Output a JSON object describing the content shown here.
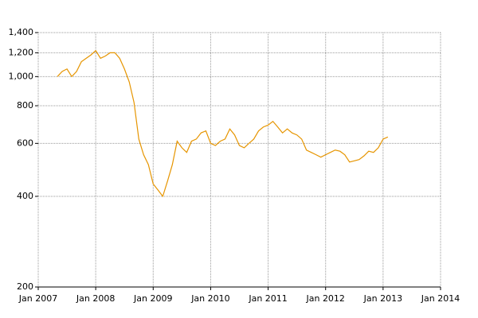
{
  "chart_data": {
    "type": "line",
    "log_scale": true,
    "grid": true,
    "x": [
      "2007-05",
      "2007-06",
      "2007-07",
      "2007-08",
      "2007-09",
      "2007-10",
      "2007-11",
      "2007-12",
      "2008-01",
      "2008-02",
      "2008-03",
      "2008-04",
      "2008-05",
      "2008-06",
      "2008-07",
      "2008-08",
      "2008-09",
      "2008-10",
      "2008-11",
      "2008-12",
      "2009-01",
      "2009-02",
      "2009-03",
      "2009-04",
      "2009-05",
      "2009-06",
      "2009-07",
      "2009-08",
      "2009-09",
      "2009-10",
      "2009-11",
      "2009-12",
      "2010-01",
      "2010-02",
      "2010-03",
      "2010-04",
      "2010-05",
      "2010-06",
      "2010-07",
      "2010-08",
      "2010-09",
      "2010-10",
      "2010-11",
      "2010-12",
      "2011-01",
      "2011-02",
      "2011-03",
      "2011-04",
      "2011-05",
      "2011-06",
      "2011-07",
      "2011-08",
      "2011-09",
      "2011-10",
      "2011-11",
      "2011-12",
      "2012-01",
      "2012-02",
      "2012-03",
      "2012-04",
      "2012-05",
      "2012-06",
      "2012-07",
      "2012-08",
      "2012-09",
      "2012-10",
      "2012-11",
      "2012-12",
      "2013-01",
      "2013-02"
    ],
    "series": [
      {
        "color": "#e69500",
        "values": [
          1000,
          1040,
          1060,
          1000,
          1040,
          1120,
          1150,
          1180,
          1220,
          1150,
          1170,
          1200,
          1200,
          1150,
          1060,
          960,
          820,
          620,
          550,
          510,
          440,
          420,
          400,
          450,
          510,
          610,
          580,
          560,
          610,
          620,
          650,
          660,
          600,
          590,
          610,
          620,
          670,
          640,
          590,
          580,
          600,
          620,
          660,
          680,
          690,
          710,
          680,
          650,
          670,
          650,
          640,
          620,
          570,
          560,
          550,
          540,
          550,
          560,
          570,
          565,
          550,
          520,
          525,
          530,
          545,
          565,
          560,
          580,
          620,
          630
        ]
      }
    ],
    "xlim": [
      "2007-01",
      "2014-01"
    ],
    "xticks": [
      {
        "value": "2007-01",
        "label": "Jan 2007"
      },
      {
        "value": "2008-01",
        "label": "Jan 2008"
      },
      {
        "value": "2009-01",
        "label": "Jan 2009"
      },
      {
        "value": "2010-01",
        "label": "Jan 2010"
      },
      {
        "value": "2011-01",
        "label": "Jan 2011"
      },
      {
        "value": "2012-01",
        "label": "Jan 2012"
      },
      {
        "value": "2013-01",
        "label": "Jan 2013"
      },
      {
        "value": "2014-01",
        "label": "Jan 2014"
      }
    ],
    "ylim": [
      200,
      1400
    ],
    "yticks": [
      200,
      400,
      600,
      800,
      {
        "value": 1000,
        "label": "1,000"
      },
      {
        "value": 1200,
        "label": "1,200"
      },
      {
        "value": 1400,
        "label": "1,400"
      }
    ]
  }
}
